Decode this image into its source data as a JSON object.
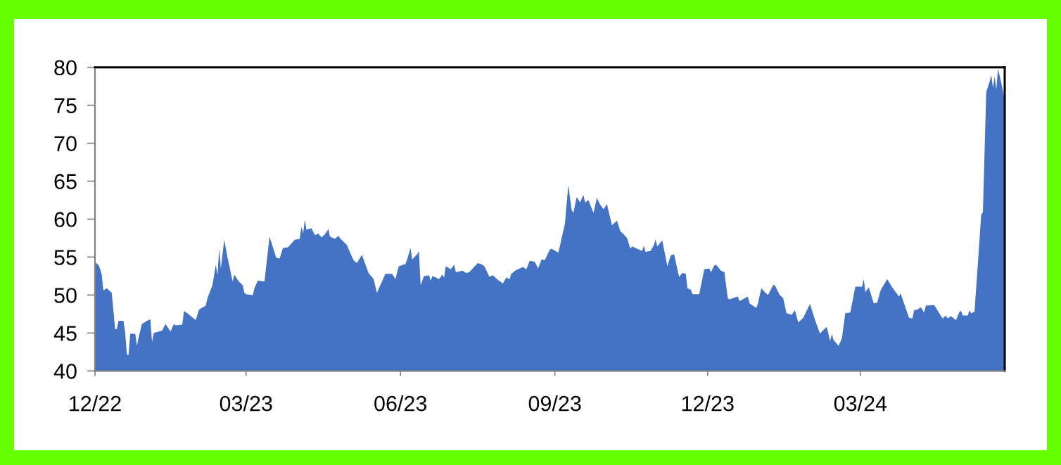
{
  "chart_data": {
    "type": "area",
    "color": "#4472c4",
    "x": [
      "2022-12-01",
      "2022-12-03",
      "2022-12-04",
      "2022-12-05",
      "2022-12-06",
      "2022-12-08",
      "2022-12-11",
      "2022-12-13",
      "2022-12-14",
      "2022-12-15",
      "2022-12-18",
      "2022-12-19",
      "2022-12-20",
      "2022-12-21",
      "2022-12-22",
      "2022-12-25",
      "2022-12-26",
      "2022-12-27",
      "2022-12-29",
      "2023-01-01",
      "2023-01-03",
      "2023-01-04",
      "2023-01-05",
      "2023-01-08",
      "2023-01-10",
      "2023-01-12",
      "2023-01-15",
      "2023-01-17",
      "2023-01-18",
      "2023-01-22",
      "2023-01-23",
      "2023-01-25",
      "2023-01-30",
      "2023-02-01",
      "2023-02-05",
      "2023-02-06",
      "2023-02-09",
      "2023-02-11",
      "2023-02-12",
      "2023-02-13",
      "2023-02-14",
      "2023-02-16",
      "2023-02-18",
      "2023-02-21",
      "2023-02-22",
      "2023-02-24",
      "2023-02-25",
      "2023-02-27",
      "2023-02-28",
      "2023-03-01",
      "2023-03-05",
      "2023-03-06",
      "2023-03-08",
      "2023-03-12",
      "2023-03-15",
      "2023-03-19",
      "2023-03-21",
      "2023-03-23",
      "2023-03-26",
      "2023-03-30",
      "2023-04-02",
      "2023-04-03",
      "2023-04-04",
      "2023-04-05",
      "2023-04-06",
      "2023-04-09",
      "2023-04-11",
      "2023-04-13",
      "2023-04-15",
      "2023-04-17",
      "2023-04-19",
      "2023-04-20",
      "2023-04-23",
      "2023-04-25",
      "2023-04-26",
      "2023-04-30",
      "2023-05-04",
      "2023-05-06",
      "2023-05-09",
      "2023-05-13",
      "2023-05-16",
      "2023-05-18",
      "2023-05-23",
      "2023-05-27",
      "2023-05-29",
      "2023-05-31",
      "2023-06-04",
      "2023-06-05",
      "2023-06-07",
      "2023-06-08",
      "2023-06-11",
      "2023-06-12",
      "2023-06-13",
      "2023-06-15",
      "2023-06-18",
      "2023-06-19",
      "2023-06-20",
      "2023-06-22",
      "2023-06-24",
      "2023-06-26",
      "2023-06-27",
      "2023-06-28",
      "2023-07-01",
      "2023-07-03",
      "2023-07-04",
      "2023-07-08",
      "2023-07-10",
      "2023-07-12",
      "2023-07-17",
      "2023-07-19",
      "2023-07-21",
      "2023-07-24",
      "2023-07-26",
      "2023-07-29",
      "2023-07-31",
      "2023-08-01",
      "2023-08-03",
      "2023-08-05",
      "2023-08-06",
      "2023-08-09",
      "2023-08-13",
      "2023-08-15",
      "2023-08-17",
      "2023-08-20",
      "2023-08-22",
      "2023-08-24",
      "2023-08-26",
      "2023-08-29",
      "2023-08-30",
      "2023-09-03",
      "2023-09-04",
      "2023-09-05",
      "2023-09-07",
      "2023-09-09",
      "2023-09-11",
      "2023-09-12",
      "2023-09-14",
      "2023-09-16",
      "2023-09-18",
      "2023-09-19",
      "2023-09-21",
      "2023-09-24",
      "2023-09-26",
      "2023-09-28",
      "2023-09-30",
      "2023-10-02",
      "2023-10-05",
      "2023-10-08",
      "2023-10-10",
      "2023-10-12",
      "2023-10-14",
      "2023-10-16",
      "2023-10-17",
      "2023-10-22",
      "2023-10-23",
      "2023-10-24",
      "2023-10-25",
      "2023-10-28",
      "2023-10-30",
      "2023-10-31",
      "2023-11-01",
      "2023-11-04",
      "2023-11-07",
      "2023-11-09",
      "2023-11-11",
      "2023-11-14",
      "2023-11-16",
      "2023-11-18",
      "2023-11-19",
      "2023-11-21",
      "2023-11-22",
      "2023-11-26",
      "2023-11-29",
      "2023-12-02",
      "2023-12-03",
      "2023-12-05",
      "2023-12-06",
      "2023-12-09",
      "2023-12-11",
      "2023-12-13",
      "2023-12-14",
      "2023-12-16",
      "2023-12-19",
      "2023-12-20",
      "2023-12-25",
      "2023-12-26",
      "2023-12-30",
      "2023-12-31",
      "2024-01-02",
      "2024-01-04",
      "2024-01-06",
      "2024-01-09",
      "2024-01-10",
      "2024-01-13",
      "2024-01-15",
      "2024-01-17",
      "2024-01-20",
      "2024-01-22",
      "2024-01-24",
      "2024-01-27",
      "2024-01-28",
      "2024-01-31",
      "2024-02-03",
      "2024-02-06",
      "2024-02-07",
      "2024-02-10",
      "2024-02-12",
      "2024-02-13",
      "2024-02-14",
      "2024-02-17",
      "2024-02-19",
      "2024-02-21",
      "2024-02-24",
      "2024-02-27",
      "2024-03-02",
      "2024-03-03",
      "2024-03-04",
      "2024-03-06",
      "2024-03-09",
      "2024-03-11",
      "2024-03-13",
      "2024-03-17",
      "2024-03-20",
      "2024-03-24",
      "2024-03-25",
      "2024-03-30",
      "2024-04-01",
      "2024-04-02",
      "2024-04-04",
      "2024-04-06",
      "2024-04-08",
      "2024-04-09",
      "2024-04-14",
      "2024-04-17",
      "2024-04-19",
      "2024-04-21",
      "2024-04-22",
      "2024-04-24",
      "2024-04-27",
      "2024-04-29",
      "2024-04-30",
      "2024-05-01",
      "2024-05-04",
      "2024-05-05",
      "2024-05-06",
      "2024-05-08",
      "2024-05-10",
      "2024-05-12",
      "2024-05-13",
      "2024-05-15",
      "2024-05-17",
      "2024-05-18",
      "2024-05-19",
      "2024-05-20",
      "2024-05-21",
      "2024-05-22",
      "2024-05-24",
      "2024-05-26"
    ],
    "values": [
      54.3,
      54.0,
      53.5,
      52.7,
      50.6,
      50.9,
      50.3,
      45.5,
      45.5,
      46.6,
      46.6,
      45.0,
      42.2,
      42.1,
      44.9,
      44.9,
      43.3,
      44.4,
      46.2,
      46.6,
      46.8,
      43.8,
      45.0,
      45.2,
      45.3,
      46.2,
      45.2,
      46.2,
      46.0,
      46.1,
      47.9,
      47.6,
      46.7,
      48.1,
      48.6,
      49.6,
      51.3,
      54.0,
      52.6,
      56.1,
      53.5,
      57.3,
      54.9,
      51.8,
      52.7,
      52.0,
      51.7,
      51.3,
      50.3,
      50.1,
      50.0,
      50.9,
      51.9,
      51.8,
      57.7,
      54.9,
      54.8,
      56.2,
      56.3,
      57.3,
      57.4,
      59.0,
      58.1,
      59.9,
      58.6,
      58.8,
      57.9,
      58.1,
      57.6,
      58.0,
      58.7,
      57.7,
      57.4,
      57.8,
      57.5,
      56.6,
      54.6,
      54.2,
      55.3,
      52.9,
      52.1,
      50.3,
      52.8,
      52.8,
      52.1,
      53.8,
      54.1,
      54.7,
      56.2,
      54.7,
      55.4,
      55.8,
      51.3,
      52.5,
      52.6,
      51.9,
      52.5,
      52.3,
      52.1,
      52.7,
      52.3,
      53.8,
      53.4,
      54.0,
      53.0,
      53.2,
      52.9,
      53.0,
      54.2,
      54.1,
      53.8,
      52.4,
      52.6,
      52.0,
      51.7,
      51.5,
      52.3,
      52.1,
      52.8,
      53.3,
      53.7,
      53.4,
      54.5,
      54.4,
      53.5,
      54.7,
      54.6,
      56.0,
      56.1,
      55.6,
      56.4,
      57.5,
      59.4,
      64.5,
      61.2,
      60.8,
      62.9,
      62.2,
      63.2,
      62.2,
      62.5,
      60.8,
      62.8,
      61.9,
      61.3,
      62.0,
      59.2,
      59.8,
      58.4,
      58.0,
      57.5,
      56.1,
      56.4,
      55.9,
      55.8,
      56.5,
      55.7,
      55.8,
      56.6,
      57.3,
      56.4,
      57.2,
      53.8,
      55.2,
      55.4,
      52.4,
      52.9,
      52.8,
      50.9,
      50.7,
      50.1,
      50.1,
      53.4,
      53.5,
      53.0,
      53.9,
      54.0,
      53.2,
      53.0,
      49.6,
      49.4,
      49.6,
      49.8,
      49.2,
      49.8,
      48.9,
      48.3,
      48.9,
      50.9,
      50.4,
      50.0,
      51.3,
      51.3,
      50.0,
      49.6,
      47.6,
      47.4,
      48.0,
      46.4,
      47.0,
      47.5,
      48.8,
      46.7,
      44.9,
      45.2,
      45.8,
      43.9,
      44.9,
      44.1,
      43.3,
      44.3,
      47.6,
      47.7,
      51.1,
      51.1,
      52.1,
      50.4,
      51.0,
      48.9,
      49.0,
      50.6,
      52.1,
      51.0,
      49.8,
      50.2,
      47.0,
      46.9,
      48.0,
      48.1,
      48.4,
      47.7,
      48.6,
      48.7,
      47.6,
      46.9,
      47.3,
      46.9,
      47.2,
      46.7,
      47.8,
      47.9,
      47.3,
      47.3,
      48.0,
      47.6,
      47.8,
      54.1,
      60.6,
      60.9,
      76.8,
      78.1,
      79.0,
      77.3,
      78.8,
      77.1,
      79.8,
      77.9,
      75.7
    ],
    "xlim": [
      "2022-12-01",
      "2024-05-26"
    ],
    "xticks": [
      {
        "value": "2022-12-01",
        "label": "12/22"
      },
      {
        "value": "2023-03-01",
        "label": "03/23"
      },
      {
        "value": "2023-06-01",
        "label": "06/23"
      },
      {
        "value": "2023-09-01",
        "label": "09/23"
      },
      {
        "value": "2023-12-01",
        "label": "12/23"
      },
      {
        "value": "2024-03-01",
        "label": "03/24"
      }
    ],
    "ylim": [
      40,
      80
    ],
    "yticks": [
      40,
      45,
      50,
      55,
      60,
      65,
      70,
      75,
      80
    ]
  }
}
